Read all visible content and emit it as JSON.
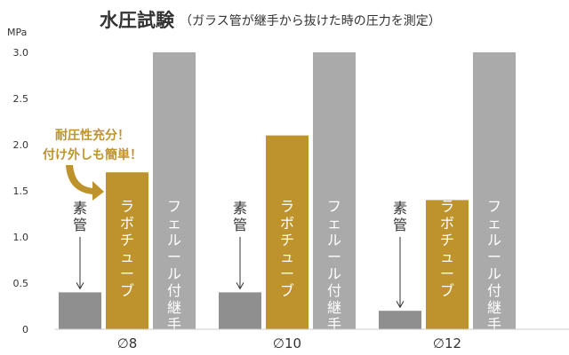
{
  "chart_data": {
    "type": "bar",
    "title": "水圧試験",
    "subtitle": "（ガラス管が継手から抜けた時の圧力を測定）",
    "ylabel": "MPa",
    "ylim": [
      0,
      3.0
    ],
    "yticks": [
      "0",
      "0.5",
      "1.0",
      "1.5",
      "2.0",
      "2.5",
      "3.0"
    ],
    "grid": false,
    "categories": [
      "∅8",
      "∅10",
      "∅12"
    ],
    "series": [
      {
        "name": "素管",
        "values": [
          0.4,
          0.4,
          0.2
        ],
        "color": "#8f8f8f",
        "text_color": "#333333"
      },
      {
        "name": "ラボチューブ",
        "values": [
          1.7,
          2.1,
          1.4
        ],
        "color": "#be932c",
        "text_color": "#ffffff"
      },
      {
        "name": "フェルール付継手",
        "values": [
          3.0,
          3.0,
          3.0
        ],
        "color": "#aaaaaa",
        "text_color": "#ffffff"
      }
    ],
    "annotation": {
      "lines": [
        "耐圧性充分！",
        "付け外しも簡単！"
      ],
      "color": "#be932c"
    }
  }
}
